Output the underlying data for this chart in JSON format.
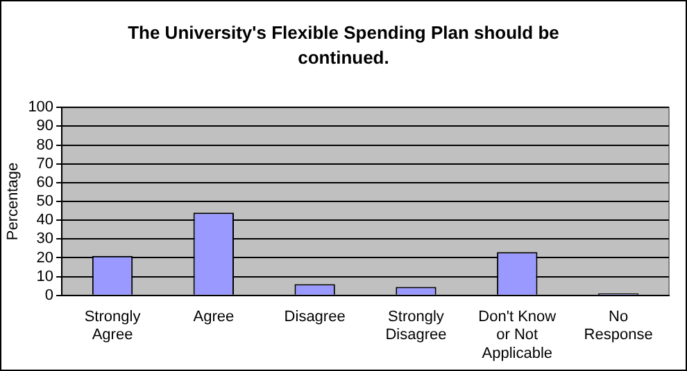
{
  "chart_data": {
    "type": "bar",
    "title": "The University's Flexible Spending Plan should be continued.",
    "ylabel": "Percentage",
    "categories": [
      "Strongly Agree",
      "Agree",
      "Disagree",
      "Strongly Disagree",
      "Don't Know or Not Applicable",
      "No Response"
    ],
    "values": [
      21,
      44,
      6,
      4.5,
      23,
      1
    ],
    "color": "#9999ff",
    "ylim": [
      0,
      100
    ],
    "yticks": [
      0,
      10,
      20,
      30,
      40,
      50,
      60,
      70,
      80,
      90,
      100
    ],
    "grid": "y",
    "legend": false
  }
}
